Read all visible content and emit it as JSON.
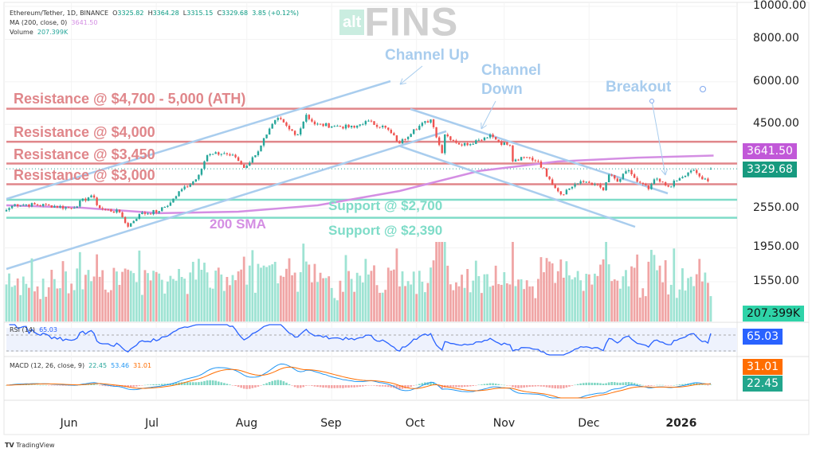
{
  "header": {
    "symbol": "Ethereum/Tether, 1D, BINANCE",
    "open_label": "O",
    "open": "3325.82",
    "high_label": "H",
    "high": "3364.28",
    "low_label": "L",
    "low": "3315.15",
    "close_label": "C",
    "close": "3329.68",
    "change": "3.85 (+0.12%)",
    "ma_label": "MA (200, close, 0)",
    "ma_value": "3641.50",
    "volume_label": "Volume",
    "volume_value": "207.399K",
    "rsi_label": "RSI (14)",
    "rsi_value": "65.03",
    "macd_label": "MACD (12, 26, close, 9)",
    "macd_hist": "22.45",
    "macd_line": "53.46",
    "macd_signal": "31.01"
  },
  "watermark": {
    "alt": "alt",
    "fins": "FINS"
  },
  "badges": {
    "ma": "3641.50",
    "price": "3329.68",
    "volume": "207.399K",
    "rsi": "65.03",
    "macd_signal": "31.01",
    "macd_hist": "22.45"
  },
  "colors": {
    "up": "#26a69a",
    "down": "#ef5350",
    "resistance": "#e0868a",
    "support": "#7fdcc8",
    "sma": "#d48ee3",
    "trend": "#a9cdee",
    "rsi": "#2962ff",
    "macd": "#2196f3",
    "signal": "#ff6d00"
  },
  "annotations": {
    "channel_up": "Channel Up",
    "channel_down_1": "Channel",
    "channel_down_2": "Down",
    "breakout": "Breakout",
    "sma_label": "200 SMA"
  },
  "footer": {
    "brand": "TradingView"
  },
  "chart_data": {
    "type": "candlestick",
    "title": "Ethereum/Tether, 1D, BINANCE",
    "y_scale": "log",
    "ylim": [
      1450,
      10000
    ],
    "yticks": [
      "10000.00",
      "8000.00",
      "6000.00",
      "4500.00",
      "2550.00",
      "1950.00",
      "1550.00"
    ],
    "ytick_values": [
      10000,
      8000,
      6000,
      4500,
      2550,
      1950,
      1550
    ],
    "xticks": [
      {
        "label": "Jun",
        "day": 23
      },
      {
        "label": "Jul",
        "day": 53
      },
      {
        "label": "Aug",
        "day": 85
      },
      {
        "label": "Sep",
        "day": 115
      },
      {
        "label": "Oct",
        "day": 145
      },
      {
        "label": "Nov",
        "day": 176
      },
      {
        "label": "Dec",
        "day": 206
      },
      {
        "label": "2026",
        "day": 237
      }
    ],
    "days": 250,
    "close_anchors": [
      [
        0,
        2520
      ],
      [
        3,
        2620
      ],
      [
        15,
        2600
      ],
      [
        23,
        2550
      ],
      [
        30,
        2780
      ],
      [
        33,
        2550
      ],
      [
        40,
        2480
      ],
      [
        43,
        2250
      ],
      [
        47,
        2450
      ],
      [
        54,
        2500
      ],
      [
        58,
        2650
      ],
      [
        62,
        2900
      ],
      [
        67,
        3100
      ],
      [
        71,
        3650
      ],
      [
        77,
        3700
      ],
      [
        81,
        3600
      ],
      [
        84,
        3350
      ],
      [
        88,
        3650
      ],
      [
        92,
        4200
      ],
      [
        96,
        4700
      ],
      [
        100,
        4350
      ],
      [
        103,
        4200
      ],
      [
        106,
        4800
      ],
      [
        109,
        4500
      ],
      [
        116,
        4450
      ],
      [
        123,
        4400
      ],
      [
        127,
        4600
      ],
      [
        134,
        4400
      ],
      [
        139,
        3950
      ],
      [
        144,
        4350
      ],
      [
        150,
        4650
      ],
      [
        154,
        3700
      ],
      [
        155,
        4200
      ],
      [
        161,
        3900
      ],
      [
        167,
        4050
      ],
      [
        171,
        4200
      ],
      [
        174,
        4000
      ],
      [
        178,
        3900
      ],
      [
        179,
        3500
      ],
      [
        184,
        3600
      ],
      [
        188,
        3500
      ],
      [
        192,
        3100
      ],
      [
        196,
        2800
      ],
      [
        201,
        3000
      ],
      [
        205,
        3050
      ],
      [
        208,
        3000
      ],
      [
        211,
        2880
      ],
      [
        213,
        3200
      ],
      [
        216,
        3050
      ],
      [
        220,
        3300
      ],
      [
        223,
        3050
      ],
      [
        227,
        2900
      ],
      [
        229,
        3100
      ],
      [
        234,
        2950
      ],
      [
        239,
        3150
      ],
      [
        243,
        3300
      ],
      [
        246,
        3100
      ],
      [
        248,
        3060
      ],
      [
        249,
        3329.68
      ]
    ],
    "sma200": [
      [
        0,
        2600
      ],
      [
        26,
        2560
      ],
      [
        54,
        2465
      ],
      [
        82,
        2490
      ],
      [
        110,
        2600
      ],
      [
        139,
        2865
      ],
      [
        167,
        3280
      ],
      [
        195,
        3500
      ],
      [
        223,
        3590
      ],
      [
        250,
        3641.5
      ]
    ],
    "resistance_levels": [
      {
        "price": 5000,
        "label": "Resistance @ $4,700 - 5,000 (ATH)"
      },
      {
        "price": 4000,
        "label": "Resistance @ $4,000"
      },
      {
        "price": 3450,
        "label": "Resistance @ $3,450"
      },
      {
        "price": 3000,
        "label": "Resistance @ $3,000"
      }
    ],
    "support_levels": [
      {
        "price": 2700,
        "label": "Support @ $2,700"
      },
      {
        "price": 2390,
        "label": "Support @ $2,390"
      }
    ],
    "last_volume": 207399,
    "rsi_last": 65.03,
    "macd_last": {
      "macd": 53.46,
      "signal": 31.01,
      "hist": 22.45
    }
  }
}
